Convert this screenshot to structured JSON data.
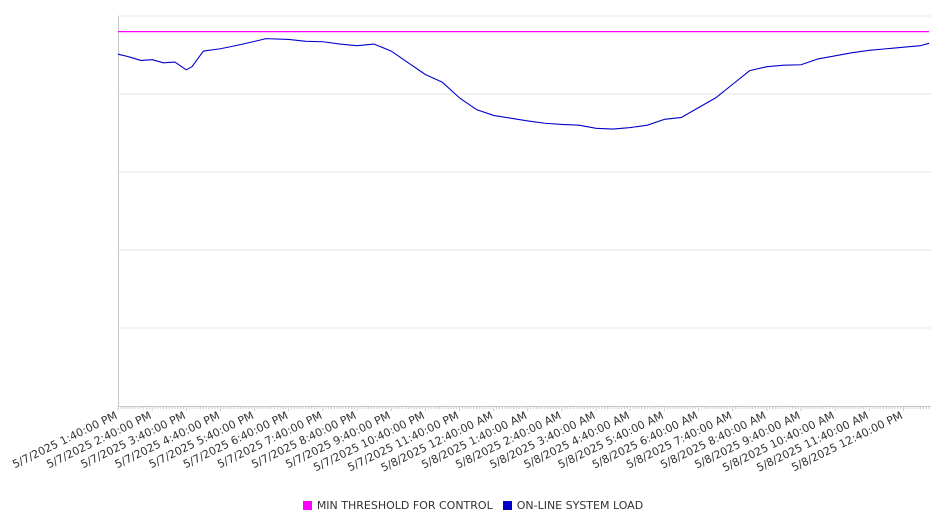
{
  "chart_data": {
    "type": "line",
    "title": "",
    "xlabel": "",
    "ylabel": "",
    "ylim": [
      0,
      1
    ],
    "grid": true,
    "legend_placement": "bottom",
    "x_tick_labels": [
      "5/7/2025 1:40:00 PM",
      "5/7/2025 2:40:00 PM",
      "5/7/2025 3:40:00 PM",
      "5/7/2025 4:40:00 PM",
      "5/7/2025 5:40:00 PM",
      "5/7/2025 6:40:00 PM",
      "5/7/2025 7:40:00 PM",
      "5/7/2025 8:40:00 PM",
      "5/7/2025 9:40:00 PM",
      "5/7/2025 10:40:00 PM",
      "5/7/2025 11:40:00 PM",
      "5/8/2025 12:40:00 AM",
      "5/8/2025 1:40:00 AM",
      "5/8/2025 2:40:00 AM",
      "5/8/2025 3:40:00 AM",
      "5/8/2025 4:40:00 AM",
      "5/8/2025 5:40:00 AM",
      "5/8/2025 6:40:00 AM",
      "5/8/2025 7:40:00 AM",
      "5/8/2025 8:40:00 AM",
      "5/8/2025 9:40:00 AM",
      "5/8/2025 10:40:00 AM",
      "5/8/2025 11:40:00 AM",
      "5/8/2025 12:40:00 PM"
    ],
    "series": [
      {
        "name": "MIN THRESHOLD FOR CONTROL",
        "color": "#ff00ff",
        "x": [
          "5/7/2025 1:40:00 PM",
          "5/8/2025 1:25:00 PM"
        ],
        "values": [
          0.96,
          0.96
        ]
      },
      {
        "name": "ON-LINE SYSTEM LOAD",
        "color": "#0000cc",
        "x": [
          "5/7/2025 1:40:00 PM",
          "5/7/2025 2:00:00 PM",
          "5/7/2025 2:20:00 PM",
          "5/7/2025 2:40:00 PM",
          "5/7/2025 3:00:00 PM",
          "5/7/2025 3:20:00 PM",
          "5/7/2025 3:40:00 PM",
          "5/7/2025 3:50:00 PM",
          "5/7/2025 4:10:00 PM",
          "5/7/2025 4:40:00 PM",
          "5/7/2025 5:10:00 PM",
          "5/7/2025 5:40:00 PM",
          "5/7/2025 6:00:00 PM",
          "5/7/2025 6:40:00 PM",
          "5/7/2025 7:10:00 PM",
          "5/7/2025 7:40:00 PM",
          "5/7/2025 8:10:00 PM",
          "5/7/2025 8:40:00 PM",
          "5/7/2025 9:10:00 PM",
          "5/7/2025 9:40:00 PM",
          "5/7/2025 10:10:00 PM",
          "5/7/2025 10:40:00 PM",
          "5/7/2025 11:10:00 PM",
          "5/7/2025 11:40:00 PM",
          "5/8/2025 12:10:00 AM",
          "5/8/2025 12:40:00 AM",
          "5/8/2025 1:10:00 AM",
          "5/8/2025 1:40:00 AM",
          "5/8/2025 2:10:00 AM",
          "5/8/2025 2:40:00 AM",
          "5/8/2025 3:10:00 AM",
          "5/8/2025 3:40:00 AM",
          "5/8/2025 4:10:00 AM",
          "5/8/2025 4:40:00 AM",
          "5/8/2025 5:10:00 AM",
          "5/8/2025 5:40:00 AM",
          "5/8/2025 6:10:00 AM",
          "5/8/2025 6:40:00 AM",
          "5/8/2025 7:10:00 AM",
          "5/8/2025 7:40:00 AM",
          "5/8/2025 8:10:00 AM",
          "5/8/2025 8:40:00 AM",
          "5/8/2025 9:10:00 AM",
          "5/8/2025 9:40:00 AM",
          "5/8/2025 10:10:00 AM",
          "5/8/2025 10:40:00 AM",
          "5/8/2025 11:10:00 AM",
          "5/8/2025 11:40:00 AM",
          "5/8/2025 12:10:00 PM",
          "5/8/2025 12:40:00 PM",
          "5/8/2025 1:10:00 PM",
          "5/8/2025 1:25:00 PM"
        ],
        "values": [
          0.902,
          0.895,
          0.886,
          0.888,
          0.88,
          0.882,
          0.862,
          0.87,
          0.91,
          0.916,
          0.925,
          0.935,
          0.942,
          0.94,
          0.935,
          0.934,
          0.928,
          0.924,
          0.928,
          0.91,
          0.88,
          0.85,
          0.83,
          0.79,
          0.76,
          0.745,
          0.738,
          0.731,
          0.725,
          0.722,
          0.72,
          0.712,
          0.71,
          0.714,
          0.72,
          0.735,
          0.74,
          0.765,
          0.79,
          0.825,
          0.86,
          0.87,
          0.874,
          0.875,
          0.89,
          0.898,
          0.906,
          0.912,
          0.916,
          0.92,
          0.924,
          0.93
        ]
      }
    ]
  }
}
